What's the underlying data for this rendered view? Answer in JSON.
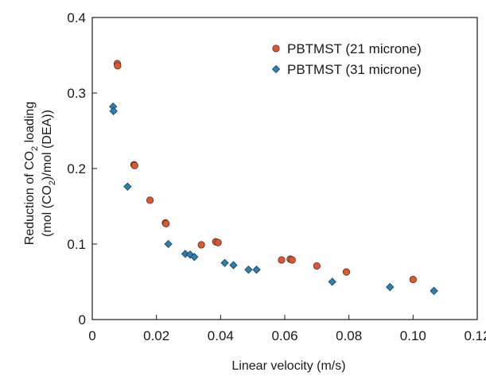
{
  "chart_data": {
    "type": "scatter",
    "xlabel": "Linear velocity (m/s)",
    "ylabel": {
      "line1_pre": "Reduction of CO",
      "line1_sub": "2",
      "line1_post": " loading",
      "line2_pre": "(mol (CO",
      "line2_sub": "2",
      "line2_post": ")/mol (DEA))"
    },
    "xlim": [
      0,
      0.12
    ],
    "ylim": [
      0,
      0.4
    ],
    "x_ticks": [
      "0",
      "0.02",
      "0.04",
      "0.06",
      "0.08",
      "0.10",
      "0.12"
    ],
    "x_tick_values": [
      0,
      0.02,
      0.04,
      0.06,
      0.08,
      0.1,
      0.12
    ],
    "y_ticks": [
      "0",
      "0.1",
      "0.2",
      "0.3",
      "0.4"
    ],
    "y_tick_values": [
      0,
      0.1,
      0.2,
      0.3,
      0.4
    ],
    "grid": false,
    "legend_position": "top-right",
    "series": [
      {
        "name": "PBTMST (21 microne)",
        "marker": "circle",
        "color": "#e8532a",
        "points": [
          [
            0.0078,
            0.339
          ],
          [
            0.0079,
            0.336
          ],
          [
            0.013,
            0.205
          ],
          [
            0.0132,
            0.204
          ],
          [
            0.018,
            0.158
          ],
          [
            0.0228,
            0.128
          ],
          [
            0.023,
            0.127
          ],
          [
            0.034,
            0.099
          ],
          [
            0.0385,
            0.103
          ],
          [
            0.0392,
            0.102
          ],
          [
            0.059,
            0.079
          ],
          [
            0.0617,
            0.08
          ],
          [
            0.0623,
            0.079
          ],
          [
            0.07,
            0.071
          ],
          [
            0.0792,
            0.063
          ],
          [
            0.1,
            0.053
          ]
        ]
      },
      {
        "name": "PBTMST (31 microne)",
        "marker": "diamond",
        "color": "#2a7fb5",
        "points": [
          [
            0.0065,
            0.282
          ],
          [
            0.0066,
            0.276
          ],
          [
            0.011,
            0.176
          ],
          [
            0.0237,
            0.1
          ],
          [
            0.029,
            0.087
          ],
          [
            0.0305,
            0.086
          ],
          [
            0.0318,
            0.083
          ],
          [
            0.0413,
            0.075
          ],
          [
            0.044,
            0.072
          ],
          [
            0.0487,
            0.066
          ],
          [
            0.0512,
            0.066
          ],
          [
            0.0748,
            0.05
          ],
          [
            0.0928,
            0.043
          ],
          [
            0.1065,
            0.038
          ]
        ]
      }
    ]
  }
}
